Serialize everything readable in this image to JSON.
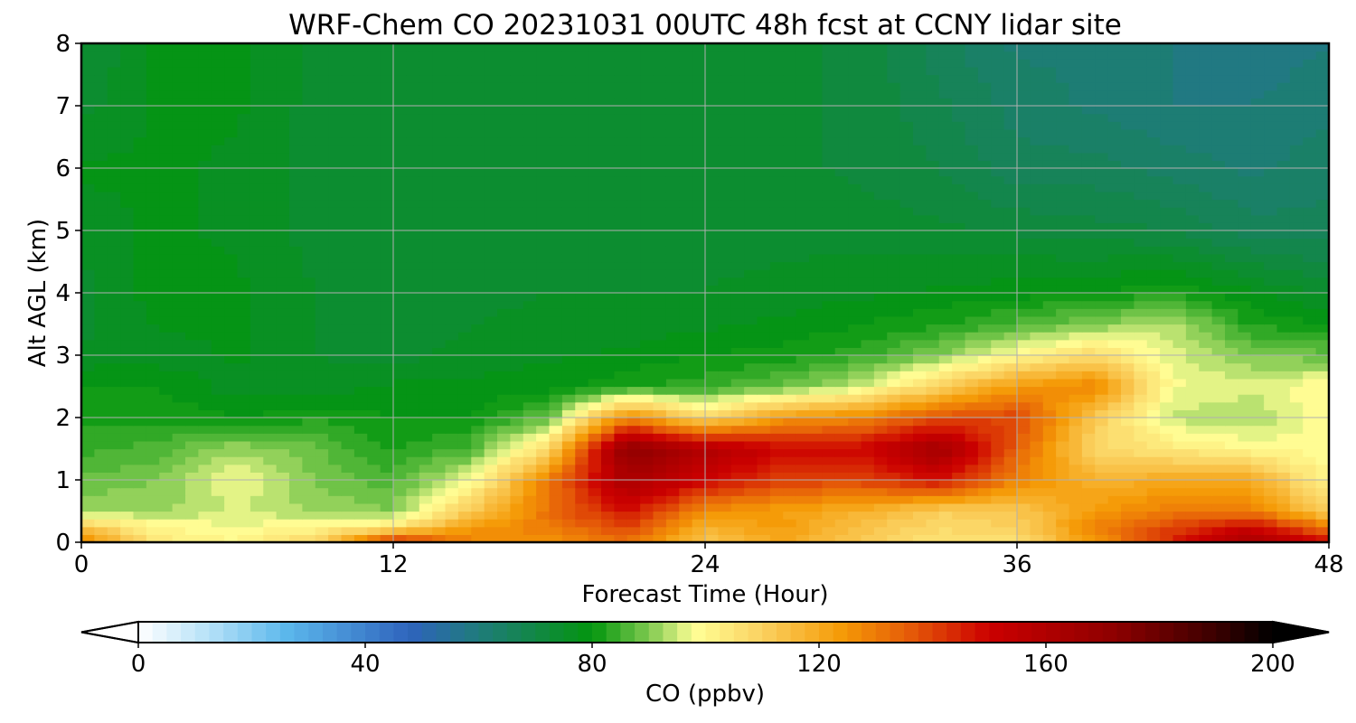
{
  "chart_data": {
    "type": "heatmap",
    "title": "WRF-Chem CO  20231031 00UTC 48h fcst at CCNY lidar site",
    "xlabel": "Forecast Time (Hour)",
    "ylabel": "Alt AGL (km)",
    "xlim": [
      0,
      48
    ],
    "ylim": [
      0,
      8
    ],
    "xticks": [
      0,
      12,
      24,
      36,
      48
    ],
    "yticks": [
      0,
      1,
      2,
      3,
      4,
      5,
      6,
      7,
      8
    ],
    "grid": true,
    "colorbar": {
      "label": "CO  (ppbv)",
      "range": [
        0,
        200
      ],
      "ticks": [
        0,
        40,
        80,
        120,
        160,
        200
      ],
      "extend": "both",
      "stops": [
        {
          "v": 0,
          "c": "#ffffff"
        },
        {
          "v": 12,
          "c": "#b8e2f8"
        },
        {
          "v": 26,
          "c": "#5cb8ec"
        },
        {
          "v": 48,
          "c": "#2e63bc"
        },
        {
          "v": 60,
          "c": "#1f7b7b"
        },
        {
          "v": 72,
          "c": "#0f8a3a"
        },
        {
          "v": 80,
          "c": "#03960e"
        },
        {
          "v": 90,
          "c": "#7ec94f"
        },
        {
          "v": 98,
          "c": "#ffff96"
        },
        {
          "v": 110,
          "c": "#fbd160"
        },
        {
          "v": 124,
          "c": "#f59a06"
        },
        {
          "v": 136,
          "c": "#e55b08"
        },
        {
          "v": 150,
          "c": "#cc0000"
        },
        {
          "v": 172,
          "c": "#8e0000"
        },
        {
          "v": 190,
          "c": "#3a0000"
        },
        {
          "v": 200,
          "c": "#000000"
        }
      ]
    },
    "grid_values": {
      "x": [
        0,
        3,
        6,
        9,
        12,
        15,
        18,
        21,
        24,
        27,
        30,
        33,
        36,
        39,
        42,
        45,
        48
      ],
      "y": [
        0,
        0.25,
        0.5,
        1,
        1.5,
        2,
        2.5,
        3,
        3.5,
        4,
        5,
        6,
        7,
        8
      ],
      "z": [
        [
          130,
          104,
          100,
          110,
          148,
          128,
          124,
          132,
          112,
          120,
          112,
          104,
          106,
          124,
          145,
          165,
          150
        ],
        [
          112,
          100,
          98,
          100,
          104,
          124,
          130,
          140,
          118,
          124,
          114,
          108,
          110,
          128,
          140,
          150,
          130
        ],
        [
          92,
          92,
          95,
          92,
          90,
          112,
          132,
          148,
          126,
          122,
          118,
          110,
          112,
          124,
          130,
          130,
          110
        ],
        [
          88,
          90,
          98,
          90,
          86,
          98,
          130,
          162,
          150,
          140,
          140,
          148,
          128,
          118,
          120,
          120,
          100
        ],
        [
          84,
          86,
          92,
          88,
          82,
          86,
          108,
          172,
          160,
          150,
          150,
          165,
          135,
          108,
          104,
          100,
          98
        ],
        [
          82,
          82,
          80,
          82,
          80,
          80,
          88,
          128,
          108,
          124,
          128,
          138,
          140,
          112,
          94,
          92,
          100
        ],
        [
          80,
          80,
          76,
          76,
          78,
          78,
          79,
          82,
          84,
          88,
          95,
          110,
          124,
          128,
          98,
          96,
          100
        ],
        [
          76,
          76,
          78,
          75,
          74,
          76,
          77,
          78,
          80,
          81,
          84,
          90,
          100,
          108,
          96,
          90,
          88
        ],
        [
          74,
          78,
          78,
          75,
          73,
          75,
          76,
          76,
          77,
          78,
          80,
          82,
          86,
          90,
          94,
          82,
          80
        ],
        [
          74,
          79,
          78,
          75,
          73,
          74,
          75,
          75,
          75,
          76,
          77,
          78,
          79,
          80,
          82,
          78,
          74
        ],
        [
          76,
          78,
          77,
          74,
          73,
          74,
          74,
          74,
          74,
          74,
          74,
          73,
          72,
          71,
          70,
          66,
          66
        ],
        [
          78,
          78,
          77,
          74,
          73,
          74,
          74,
          74,
          74,
          73,
          72,
          70,
          66,
          66,
          64,
          62,
          64
        ],
        [
          74,
          78,
          78,
          74,
          73,
          74,
          74,
          74,
          73,
          73,
          72,
          68,
          64,
          62,
          60,
          60,
          62
        ],
        [
          72,
          78,
          78,
          74,
          73,
          73,
          74,
          74,
          73,
          73,
          72,
          66,
          62,
          62,
          60,
          58,
          60
        ]
      ]
    }
  }
}
